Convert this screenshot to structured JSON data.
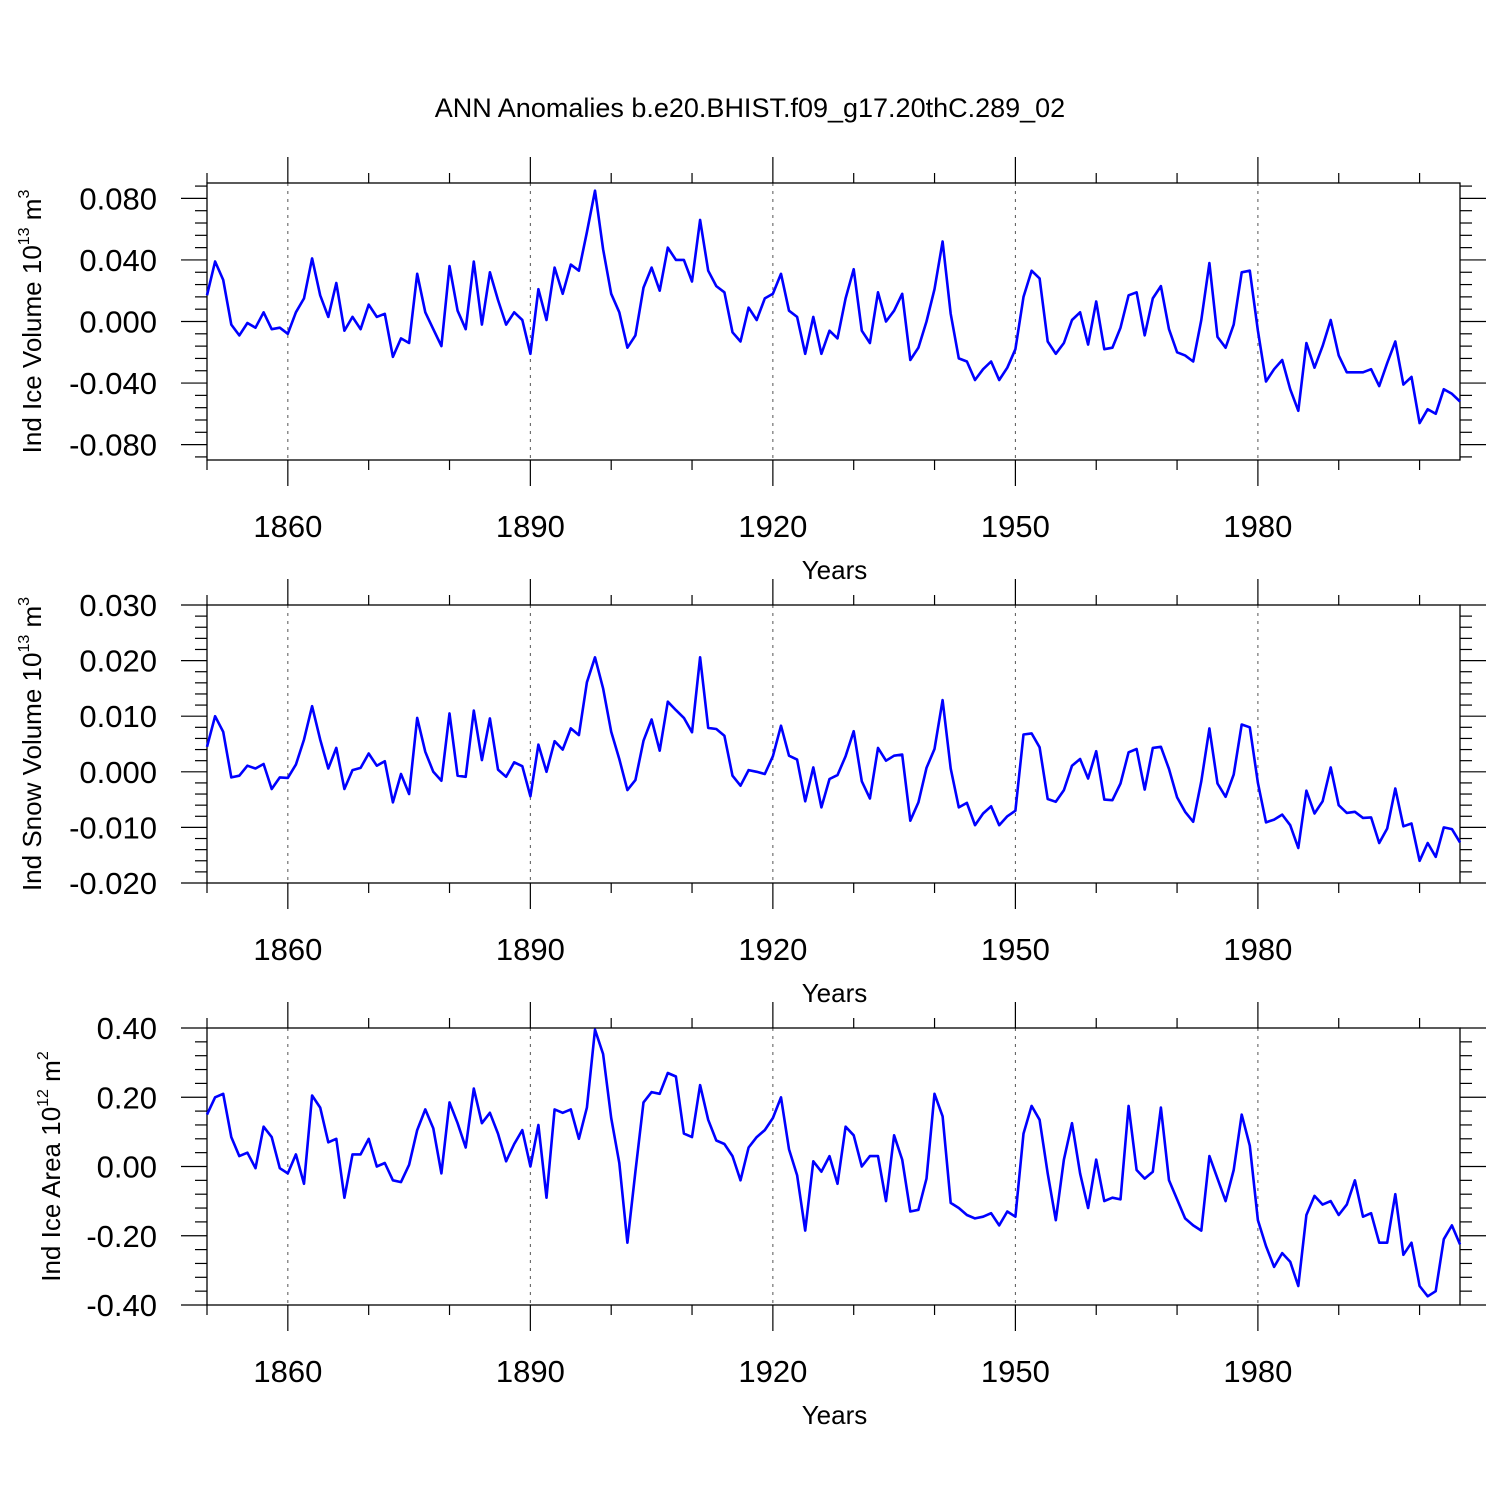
{
  "title": "ANN Anomalies b.e20.BHIST.f09_g17.20thC.289_02",
  "colors": {
    "series": "#0000ff",
    "axis": "#000000",
    "grid": "#555555"
  },
  "chart_data": [
    {
      "type": "line",
      "ylabel": {
        "base": "Ind Ice Volume 10",
        "exp": "13",
        "unit": " m",
        "unit_exp": "3"
      },
      "xlabel": "Years",
      "xlim": [
        1850,
        2005
      ],
      "ylim": [
        -0.09,
        0.09
      ],
      "x_ticks": [
        1860,
        1890,
        1920,
        1950,
        1980
      ],
      "x_tick_labels": [
        "1860",
        "1890",
        "1920",
        "1950",
        "1980"
      ],
      "y_ticks": [
        0.08,
        0.04,
        0.0,
        -0.04,
        -0.08
      ],
      "y_tick_labels": [
        "0.080",
        "0.040",
        "0.000",
        "-0.040",
        "-0.080"
      ],
      "grid": "dashed vertical lines at labeled years",
      "series": [
        {
          "x_start": 1850,
          "values": [
            0.017,
            0.039,
            0.027,
            -0.002,
            -0.009,
            -0.001,
            -0.004,
            0.006,
            -0.005,
            -0.004,
            -0.008,
            0.006,
            0.015,
            0.041,
            0.017,
            0.003,
            0.025,
            -0.006,
            0.003,
            -0.005,
            0.011,
            0.003,
            0.005,
            -0.023,
            -0.011,
            -0.014,
            0.031,
            0.006,
            -0.005,
            -0.016,
            0.036,
            0.007,
            -0.005,
            0.039,
            -0.002,
            0.032,
            0.014,
            -0.002,
            0.006,
            0.001,
            -0.021,
            0.021,
            0.001,
            0.035,
            0.018,
            0.037,
            0.033,
            0.058,
            0.085,
            0.047,
            0.018,
            0.006,
            -0.017,
            -0.009,
            0.022,
            0.035,
            0.02,
            0.048,
            0.04,
            0.04,
            0.026,
            0.066,
            0.033,
            0.023,
            0.019,
            -0.007,
            -0.013,
            0.009,
            0.001,
            0.015,
            0.018,
            0.031,
            0.007,
            0.003,
            -0.021,
            0.003,
            -0.021,
            -0.006,
            -0.011,
            0.015,
            0.034,
            -0.006,
            -0.014,
            0.019,
            0.0,
            0.007,
            0.018,
            -0.025,
            -0.017,
            0.0,
            0.021,
            0.052,
            0.005,
            -0.024,
            -0.026,
            -0.038,
            -0.031,
            -0.026,
            -0.038,
            -0.03,
            -0.018,
            0.016,
            0.033,
            0.028,
            -0.013,
            -0.021,
            -0.014,
            0.001,
            0.006,
            -0.015,
            0.013,
            -0.018,
            -0.017,
            -0.004,
            0.017,
            0.019,
            -0.009,
            0.015,
            0.023,
            -0.005,
            -0.02,
            -0.022,
            -0.026,
            0.001,
            0.038,
            -0.01,
            -0.017,
            -0.002,
            0.032,
            0.033,
            -0.006,
            -0.039,
            -0.031,
            -0.025,
            -0.044,
            -0.058,
            -0.014,
            -0.03,
            -0.016,
            0.001,
            -0.022,
            -0.033,
            -0.033,
            -0.033,
            -0.031,
            -0.042,
            -0.027,
            -0.013,
            -0.041,
            -0.036,
            -0.066,
            -0.057,
            -0.06,
            -0.044,
            -0.047,
            -0.052
          ]
        }
      ]
    },
    {
      "type": "line",
      "ylabel": {
        "base": "Ind Snow Volume 10",
        "exp": "13",
        "unit": " m",
        "unit_exp": "3"
      },
      "xlabel": "Years",
      "xlim": [
        1850,
        2005
      ],
      "ylim": [
        -0.02,
        0.03
      ],
      "x_ticks": [
        1860,
        1890,
        1920,
        1950,
        1980
      ],
      "x_tick_labels": [
        "1860",
        "1890",
        "1920",
        "1950",
        "1980"
      ],
      "y_ticks": [
        0.03,
        0.02,
        0.01,
        0.0,
        -0.01,
        -0.02
      ],
      "y_tick_labels": [
        "0.030",
        "0.020",
        "0.010",
        "0.000",
        "-0.010",
        "-0.020"
      ],
      "grid": "dashed vertical lines at labeled years",
      "series": [
        {
          "x_start": 1850,
          "values": [
            0.0045,
            0.01,
            0.0072,
            -0.001,
            -0.0007,
            0.0011,
            0.0006,
            0.0014,
            -0.0031,
            -0.001,
            -0.0011,
            0.0013,
            0.0058,
            0.0118,
            0.0058,
            0.0006,
            0.0043,
            -0.0031,
            0.0003,
            0.0007,
            0.0033,
            0.0011,
            0.0019,
            -0.0055,
            -0.0004,
            -0.004,
            0.0097,
            0.0036,
            0.0,
            -0.0016,
            0.0105,
            -0.0007,
            -0.0009,
            0.011,
            0.0021,
            0.0096,
            0.0004,
            -0.0009,
            0.0017,
            0.001,
            -0.0044,
            0.0049,
            0.0,
            0.0055,
            0.004,
            0.0078,
            0.0066,
            0.0161,
            0.0206,
            0.015,
            0.0072,
            0.0023,
            -0.0033,
            -0.0015,
            0.0056,
            0.0094,
            0.0038,
            0.0126,
            0.0111,
            0.0097,
            0.0071,
            0.0206,
            0.0079,
            0.0077,
            0.0065,
            -0.0007,
            -0.0025,
            0.0003,
            0.0,
            -0.0004,
            0.0028,
            0.0083,
            0.0029,
            0.0022,
            -0.0053,
            0.0008,
            -0.0064,
            -0.0013,
            -0.0006,
            0.0028,
            0.0073,
            -0.0017,
            -0.0048,
            0.0043,
            0.002,
            0.0029,
            0.0031,
            -0.0088,
            -0.0055,
            0.0007,
            0.0041,
            0.0129,
            0.0006,
            -0.0064,
            -0.0056,
            -0.0096,
            -0.0075,
            -0.0062,
            -0.0096,
            -0.008,
            -0.007,
            0.0067,
            0.0069,
            0.0044,
            -0.0049,
            -0.0054,
            -0.0033,
            0.0011,
            0.0023,
            -0.0012,
            0.0037,
            -0.005,
            -0.0051,
            -0.0021,
            0.0035,
            0.0041,
            -0.0032,
            0.0043,
            0.0045,
            0.0005,
            -0.0046,
            -0.0072,
            -0.009,
            -0.0017,
            0.0078,
            -0.0021,
            -0.0045,
            -0.0005,
            0.0085,
            0.008,
            -0.002,
            -0.0091,
            -0.0086,
            -0.0077,
            -0.0096,
            -0.0137,
            -0.0034,
            -0.0075,
            -0.0053,
            0.0008,
            -0.006,
            -0.0074,
            -0.0072,
            -0.0083,
            -0.0082,
            -0.0128,
            -0.0102,
            -0.003,
            -0.0098,
            -0.0093,
            -0.016,
            -0.0128,
            -0.0153,
            -0.01,
            -0.0103,
            -0.0127
          ]
        }
      ]
    },
    {
      "type": "line",
      "ylabel": {
        "base": "Ind Ice Area 10",
        "exp": "12",
        "unit": " m",
        "unit_exp": "2"
      },
      "xlabel": "Years",
      "xlim": [
        1850,
        2005
      ],
      "ylim": [
        -0.4,
        0.4
      ],
      "x_ticks": [
        1860,
        1890,
        1920,
        1950,
        1980
      ],
      "x_tick_labels": [
        "1860",
        "1890",
        "1920",
        "1950",
        "1980"
      ],
      "y_ticks": [
        0.4,
        0.2,
        0.0,
        -0.2,
        -0.4
      ],
      "y_tick_labels": [
        "0.40",
        "0.20",
        "0.00",
        "-0.20",
        "-0.40"
      ],
      "grid": "dashed vertical lines at labeled years",
      "series": [
        {
          "x_start": 1850,
          "values": [
            0.15,
            0.2,
            0.21,
            0.085,
            0.03,
            0.04,
            -0.005,
            0.115,
            0.085,
            -0.005,
            -0.02,
            0.035,
            -0.05,
            0.205,
            0.17,
            0.07,
            0.08,
            -0.09,
            0.035,
            0.035,
            0.08,
            0.0,
            0.01,
            -0.04,
            -0.045,
            0.005,
            0.105,
            0.165,
            0.11,
            -0.02,
            0.185,
            0.125,
            0.055,
            0.225,
            0.125,
            0.155,
            0.095,
            0.015,
            0.065,
            0.105,
            0.0,
            0.12,
            -0.09,
            0.165,
            0.155,
            0.165,
            0.08,
            0.17,
            0.395,
            0.325,
            0.14,
            0.01,
            -0.22,
            -0.015,
            0.185,
            0.215,
            0.21,
            0.27,
            0.26,
            0.095,
            0.085,
            0.235,
            0.135,
            0.075,
            0.065,
            0.03,
            -0.04,
            0.055,
            0.085,
            0.105,
            0.14,
            0.2,
            0.05,
            -0.025,
            -0.185,
            0.015,
            -0.015,
            0.03,
            -0.05,
            0.115,
            0.09,
            0.0,
            0.03,
            0.03,
            -0.1,
            0.09,
            0.02,
            -0.13,
            -0.125,
            -0.035,
            0.21,
            0.145,
            -0.105,
            -0.12,
            -0.14,
            -0.15,
            -0.145,
            -0.135,
            -0.17,
            -0.13,
            -0.145,
            0.095,
            0.175,
            0.135,
            -0.02,
            -0.155,
            0.02,
            0.125,
            -0.02,
            -0.12,
            0.02,
            -0.1,
            -0.09,
            -0.095,
            0.175,
            -0.01,
            -0.035,
            -0.015,
            0.17,
            -0.04,
            -0.095,
            -0.15,
            -0.17,
            -0.185,
            0.03,
            -0.035,
            -0.1,
            -0.01,
            0.15,
            0.06,
            -0.155,
            -0.23,
            -0.29,
            -0.25,
            -0.275,
            -0.345,
            -0.14,
            -0.085,
            -0.11,
            -0.1,
            -0.14,
            -0.11,
            -0.04,
            -0.145,
            -0.135,
            -0.22,
            -0.22,
            -0.08,
            -0.255,
            -0.22,
            -0.345,
            -0.375,
            -0.36,
            -0.21,
            -0.17,
            -0.225
          ]
        }
      ]
    }
  ]
}
